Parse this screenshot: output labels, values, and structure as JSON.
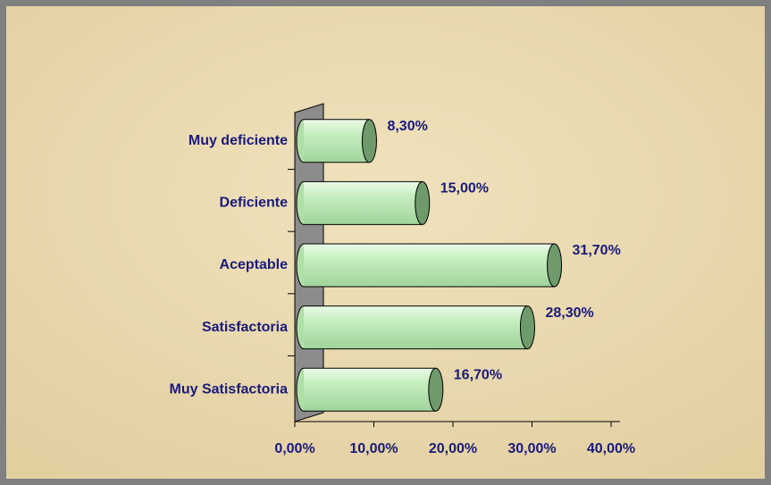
{
  "chart_data": {
    "type": "bar",
    "orientation": "horizontal",
    "categories": [
      "Muy deficiente",
      "Deficiente",
      "Aceptable",
      "Satisfactoria",
      "Muy Satisfactoria"
    ],
    "values": [
      8.3,
      15,
      31.7,
      28.3,
      16.7
    ],
    "value_labels": [
      "8,30%",
      "15,00%",
      "31,70%",
      "28,30%",
      "16,70%"
    ],
    "color": "#c8f0c0",
    "xlim": [
      0,
      40
    ],
    "xticks": [
      {
        "value": 0,
        "label": "0,00%"
      },
      {
        "value": 10,
        "label": "10,00%"
      },
      {
        "value": 20,
        "label": "20,00%"
      },
      {
        "value": 30,
        "label": "30,00%"
      },
      {
        "value": 40,
        "label": "40,00%"
      }
    ]
  }
}
